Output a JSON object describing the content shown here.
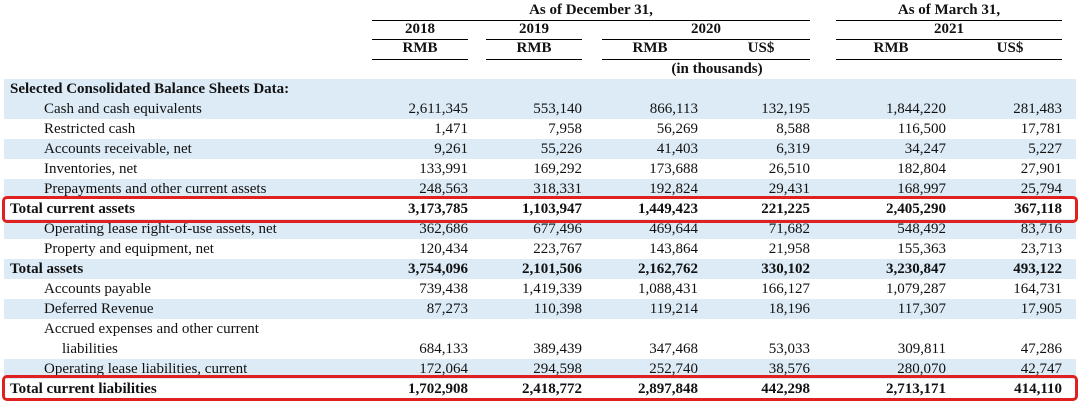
{
  "header": {
    "group_dec": "As of December 31,",
    "group_mar": "As of March 31,",
    "y2018": "2018",
    "y2019": "2019",
    "y2020": "2020",
    "y2021": "2021",
    "cur": [
      "RMB",
      "RMB",
      "RMB",
      "US$",
      "RMB",
      "US$"
    ],
    "units": "(in thousands)"
  },
  "section_title": "Selected Consolidated Balance Sheets Data:",
  "rows": [
    {
      "label": "Cash and cash equivalents",
      "v": [
        "2,611,345",
        "553,140",
        "866,113",
        "132,195",
        "1,844,220",
        "281,483"
      ]
    },
    {
      "label": "Restricted cash",
      "v": [
        "1,471",
        "7,958",
        "56,269",
        "8,588",
        "116,500",
        "17,781"
      ]
    },
    {
      "label": "Accounts receivable, net",
      "v": [
        "9,261",
        "55,226",
        "41,403",
        "6,319",
        "34,247",
        "5,227"
      ]
    },
    {
      "label": "Inventories, net",
      "v": [
        "133,991",
        "169,292",
        "173,688",
        "26,510",
        "182,804",
        "27,901"
      ]
    },
    {
      "label": "Prepayments and other current assets",
      "v": [
        "248,563",
        "318,331",
        "192,824",
        "29,431",
        "168,997",
        "25,794"
      ]
    },
    {
      "label": "Total current assets",
      "v": [
        "3,173,785",
        "1,103,947",
        "1,449,423",
        "221,225",
        "2,405,290",
        "367,118"
      ]
    },
    {
      "label": "Operating lease right-of-use assets, net",
      "v": [
        "362,686",
        "677,496",
        "469,644",
        "71,682",
        "548,492",
        "83,716"
      ]
    },
    {
      "label": "Property and equipment, net",
      "v": [
        "120,434",
        "223,767",
        "143,864",
        "21,958",
        "155,363",
        "23,713"
      ]
    },
    {
      "label": "Total assets",
      "v": [
        "3,754,096",
        "2,101,506",
        "2,162,762",
        "330,102",
        "3,230,847",
        "493,122"
      ]
    },
    {
      "label": "Accounts payable",
      "v": [
        "739,438",
        "1,419,339",
        "1,088,431",
        "166,127",
        "1,079,287",
        "164,731"
      ]
    },
    {
      "label": "Deferred Revenue",
      "v": [
        "87,273",
        "110,398",
        "119,214",
        "18,196",
        "117,307",
        "17,905"
      ]
    },
    {
      "label": "Accrued expenses and other current",
      "label2": "liabilities",
      "v": [
        "684,133",
        "389,439",
        "347,468",
        "53,033",
        "309,811",
        "47,286"
      ]
    },
    {
      "label": "Operating lease liabilities, current",
      "v": [
        "172,064",
        "294,598",
        "252,740",
        "38,576",
        "280,070",
        "42,747"
      ]
    },
    {
      "label": "Total current liabilities",
      "v": [
        "1,702,908",
        "2,418,772",
        "2,897,848",
        "442,298",
        "2,713,171",
        "414,110"
      ]
    }
  ],
  "colors": {
    "shade": "#dcebf6",
    "highlight": "#e0211f"
  }
}
